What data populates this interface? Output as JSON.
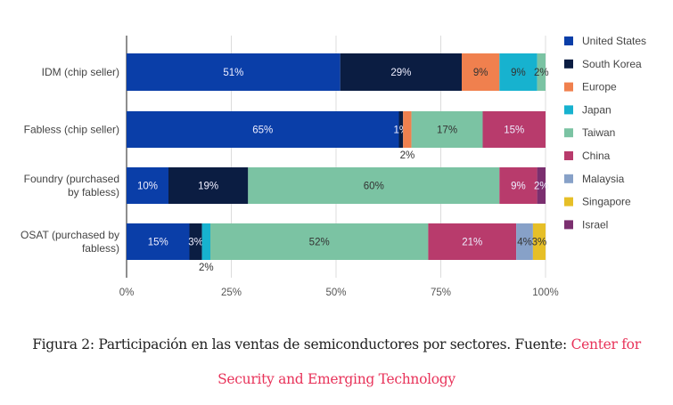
{
  "chart_data": {
    "type": "bar",
    "orientation": "horizontal",
    "stacked": true,
    "categories": [
      "IDM (chip seller)",
      "Fabless (chip seller)",
      "Foundry (purchased by fabless)",
      "OSAT (purchased by fabless)"
    ],
    "category_lines": [
      [
        "IDM (chip seller)"
      ],
      [
        "Fabless (chip seller)"
      ],
      [
        "Foundry (purchased",
        "by fabless)"
      ],
      [
        "OSAT (purchased by",
        "fabless)"
      ]
    ],
    "series": [
      {
        "name": "United States",
        "color": "#0a3ea8",
        "values": [
          51,
          65,
          10,
          15
        ]
      },
      {
        "name": "South Korea",
        "color": "#0b1d42",
        "values": [
          29,
          1,
          19,
          3
        ]
      },
      {
        "name": "Europe",
        "color": "#f0804e",
        "values": [
          9,
          2,
          0,
          0
        ]
      },
      {
        "name": "Japan",
        "color": "#17b2cf",
        "values": [
          9,
          0,
          0,
          2
        ]
      },
      {
        "name": "Taiwan",
        "color": "#7bc3a3",
        "values": [
          2,
          17,
          60,
          52
        ]
      },
      {
        "name": "China",
        "color": "#b83b6c",
        "values": [
          0,
          15,
          9,
          21
        ]
      },
      {
        "name": "Malaysia",
        "color": "#87a1c8",
        "values": [
          0,
          0,
          0,
          4
        ]
      },
      {
        "name": "Singapore",
        "color": "#e6bf27",
        "values": [
          0,
          0,
          0,
          3
        ]
      },
      {
        "name": "Israel",
        "color": "#7b2f6f",
        "values": [
          0,
          0,
          2,
          0
        ]
      }
    ],
    "xlim": [
      0,
      100
    ],
    "xticks": [
      "0%",
      "25%",
      "50%",
      "75%",
      "100%"
    ],
    "grid": true,
    "legend": "right",
    "data_labels": true
  },
  "caption": {
    "text": "Figura 2: Participación en las ventas de semiconductores por sectores. Fuente: ",
    "link": "Center for Security and Emerging Technology"
  }
}
